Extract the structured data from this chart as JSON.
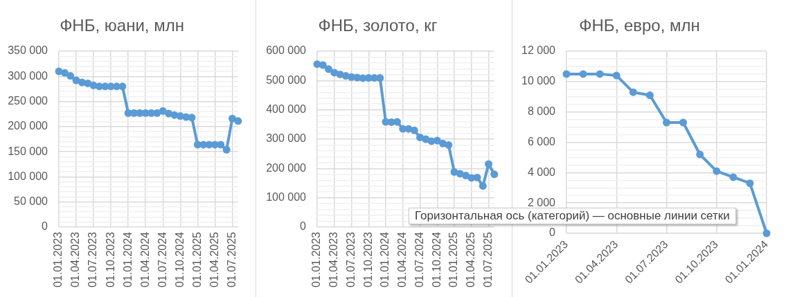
{
  "chart_data": [
    {
      "type": "line",
      "title": "ФНБ, юани, млн",
      "marker": "circle",
      "grid": true,
      "categories": [
        "01.01.2023",
        null,
        null,
        "01.04.2023",
        null,
        null,
        "01.07.2023",
        null,
        null,
        "01.10.2023",
        null,
        null,
        "01.01.2024",
        null,
        null,
        "01.04.2024",
        null,
        null,
        "01.07.2024",
        null,
        null,
        "01.10.2024",
        null,
        null,
        "01.01.2025",
        null,
        null,
        "01.04.2025",
        null,
        null,
        "01.07.2025",
        null
      ],
      "series": [
        {
          "color": "#5b9bd5",
          "values": [
            310000,
            307000,
            301000,
            292000,
            288000,
            286000,
            282000,
            280000,
            280000,
            280000,
            280000,
            280000,
            227000,
            227000,
            227000,
            227000,
            227000,
            227000,
            231000,
            226000,
            223000,
            221000,
            219000,
            218000,
            164000,
            164000,
            164000,
            164000,
            164000,
            154000,
            216000,
            211000
          ]
        }
      ],
      "ylim": [
        0,
        350000
      ],
      "yticks": [
        {
          "value": 0,
          "label": "0"
        },
        {
          "value": 10000,
          "label": null
        },
        {
          "value": 20000,
          "label": null
        },
        {
          "value": 30000,
          "label": null
        },
        {
          "value": 40000,
          "label": null
        },
        {
          "value": 50000,
          "label": "50 000"
        },
        {
          "value": 60000,
          "label": null
        },
        {
          "value": 70000,
          "label": null
        },
        {
          "value": 80000,
          "label": null
        },
        {
          "value": 90000,
          "label": null
        },
        {
          "value": 100000,
          "label": "100 000"
        },
        {
          "value": 110000,
          "label": null
        },
        {
          "value": 120000,
          "label": null
        },
        {
          "value": 130000,
          "label": null
        },
        {
          "value": 140000,
          "label": null
        },
        {
          "value": 150000,
          "label": "150 000"
        },
        {
          "value": 160000,
          "label": null
        },
        {
          "value": 170000,
          "label": null
        },
        {
          "value": 180000,
          "label": null
        },
        {
          "value": 190000,
          "label": null
        },
        {
          "value": 200000,
          "label": "200 000"
        },
        {
          "value": 210000,
          "label": null
        },
        {
          "value": 220000,
          "label": null
        },
        {
          "value": 230000,
          "label": null
        },
        {
          "value": 240000,
          "label": null
        },
        {
          "value": 250000,
          "label": "250 000"
        },
        {
          "value": 260000,
          "label": null
        },
        {
          "value": 270000,
          "label": null
        },
        {
          "value": 280000,
          "label": null
        },
        {
          "value": 290000,
          "label": null
        },
        {
          "value": 300000,
          "label": "300 000"
        },
        {
          "value": 310000,
          "label": null
        },
        {
          "value": 320000,
          "label": null
        },
        {
          "value": 330000,
          "label": null
        },
        {
          "value": 340000,
          "label": null
        },
        {
          "value": 350000,
          "label": "350 000"
        }
      ]
    },
    {
      "type": "line",
      "title": "ФНБ, золото, кг",
      "marker": "circle",
      "grid": true,
      "categories": [
        "01.01.2023",
        null,
        null,
        "01.04.2023",
        null,
        null,
        "01.07.2023",
        null,
        null,
        "01.10.2023",
        null,
        null,
        "01.01.2024",
        null,
        null,
        "01.04.2024",
        null,
        null,
        "01.07.2024",
        null,
        null,
        "01.10.2024",
        null,
        null,
        "01.01.2025",
        null,
        null,
        "01.04.2025",
        null,
        null,
        "01.07.2025",
        null
      ],
      "series": [
        {
          "color": "#5b9bd5",
          "values": [
            556000,
            553000,
            539000,
            527000,
            521000,
            516000,
            512000,
            510000,
            508000,
            509000,
            509000,
            509000,
            359000,
            358000,
            359000,
            335000,
            335000,
            330000,
            306000,
            300000,
            293000,
            295000,
            285000,
            280000,
            188000,
            182000,
            176000,
            168000,
            169000,
            140000,
            215000,
            180000
          ]
        }
      ],
      "ylim": [
        0,
        600000
      ],
      "yticks": [
        {
          "value": 0,
          "label": "0"
        },
        {
          "value": 20000,
          "label": null
        },
        {
          "value": 40000,
          "label": null
        },
        {
          "value": 60000,
          "label": null
        },
        {
          "value": 80000,
          "label": null
        },
        {
          "value": 100000,
          "label": "100 000"
        },
        {
          "value": 120000,
          "label": null
        },
        {
          "value": 140000,
          "label": null
        },
        {
          "value": 160000,
          "label": null
        },
        {
          "value": 180000,
          "label": null
        },
        {
          "value": 200000,
          "label": "200 000"
        },
        {
          "value": 220000,
          "label": null
        },
        {
          "value": 240000,
          "label": null
        },
        {
          "value": 260000,
          "label": null
        },
        {
          "value": 280000,
          "label": null
        },
        {
          "value": 300000,
          "label": "300 000"
        },
        {
          "value": 320000,
          "label": null
        },
        {
          "value": 340000,
          "label": null
        },
        {
          "value": 360000,
          "label": null
        },
        {
          "value": 380000,
          "label": null
        },
        {
          "value": 400000,
          "label": "400 000"
        },
        {
          "value": 420000,
          "label": null
        },
        {
          "value": 440000,
          "label": null
        },
        {
          "value": 460000,
          "label": null
        },
        {
          "value": 480000,
          "label": null
        },
        {
          "value": 500000,
          "label": "500 000"
        },
        {
          "value": 520000,
          "label": null
        },
        {
          "value": 540000,
          "label": null
        },
        {
          "value": 560000,
          "label": null
        },
        {
          "value": 580000,
          "label": null
        },
        {
          "value": 600000,
          "label": "600 000"
        }
      ]
    },
    {
      "type": "line",
      "title": "ФНБ, евро, млн",
      "marker": "circle",
      "grid": true,
      "categories": [
        "01.01.2023",
        null,
        null,
        "01.04.2023",
        null,
        null,
        "01.07.2023",
        null,
        null,
        "01.10.2023",
        null,
        null,
        "01.01.2024"
      ],
      "series": [
        {
          "color": "#5b9bd5",
          "values": [
            10500,
            10500,
            10500,
            10400,
            9300,
            9100,
            7300,
            7300,
            5200,
            4100,
            3700,
            3300,
            0
          ]
        }
      ],
      "ylim": [
        0,
        12000
      ],
      "yticks": [
        {
          "value": 0,
          "label": "0"
        },
        {
          "value": 500,
          "label": null
        },
        {
          "value": 1000,
          "label": null
        },
        {
          "value": 1500,
          "label": null
        },
        {
          "value": 2000,
          "label": "2 000"
        },
        {
          "value": 2500,
          "label": null
        },
        {
          "value": 3000,
          "label": null
        },
        {
          "value": 3500,
          "label": null
        },
        {
          "value": 4000,
          "label": "4 000"
        },
        {
          "value": 4500,
          "label": null
        },
        {
          "value": 5000,
          "label": null
        },
        {
          "value": 5500,
          "label": null
        },
        {
          "value": 6000,
          "label": "6 000"
        },
        {
          "value": 6500,
          "label": null
        },
        {
          "value": 7000,
          "label": null
        },
        {
          "value": 7500,
          "label": null
        },
        {
          "value": 8000,
          "label": "8 000"
        },
        {
          "value": 8500,
          "label": null
        },
        {
          "value": 9000,
          "label": null
        },
        {
          "value": 9500,
          "label": null
        },
        {
          "value": 10000,
          "label": "10 000"
        },
        {
          "value": 10500,
          "label": null
        },
        {
          "value": 11000,
          "label": null
        },
        {
          "value": 11500,
          "label": null
        },
        {
          "value": 12000,
          "label": "12 000"
        }
      ],
      "annotations": [
        "Горизонтальная ось (категорий) — основные линии сетки"
      ]
    }
  ]
}
